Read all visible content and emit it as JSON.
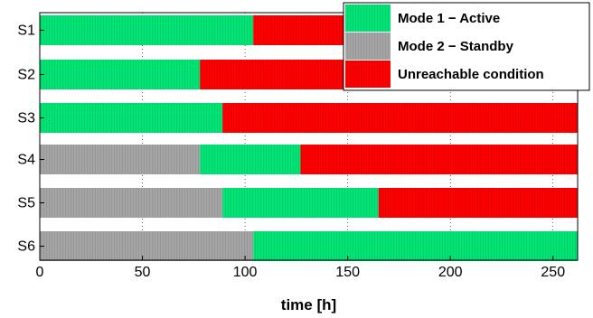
{
  "chart_data": {
    "type": "bar",
    "orientation": "horizontal",
    "stacked": true,
    "title": "",
    "xlabel": "time [h]",
    "ylabel": "",
    "xlim": [
      0,
      262
    ],
    "x_ticks": [
      0,
      50,
      100,
      150,
      200,
      250
    ],
    "categories": [
      "S1",
      "S2",
      "S3",
      "S4",
      "S5",
      "S6"
    ],
    "series": [
      {
        "name": "Mode 1 − Active",
        "color": "#00e676",
        "segments": [
          [
            0,
            104
          ],
          [
            0,
            78
          ],
          [
            0,
            89
          ],
          [
            78,
            127
          ],
          [
            89,
            165
          ],
          [
            104,
            262
          ]
        ]
      },
      {
        "name": "Mode 2 − Standby",
        "color": "#a6a6a6",
        "segments": [
          null,
          null,
          null,
          [
            0,
            78
          ],
          [
            0,
            89
          ],
          [
            0,
            104
          ]
        ]
      },
      {
        "name": "Unreachable condition",
        "color": "#ff0000",
        "segments": [
          [
            104,
            262
          ],
          [
            78,
            262
          ],
          [
            89,
            262
          ],
          [
            127,
            262
          ],
          [
            165,
            262
          ],
          null
        ]
      }
    ],
    "grid": true,
    "legend_position": "top-right"
  }
}
